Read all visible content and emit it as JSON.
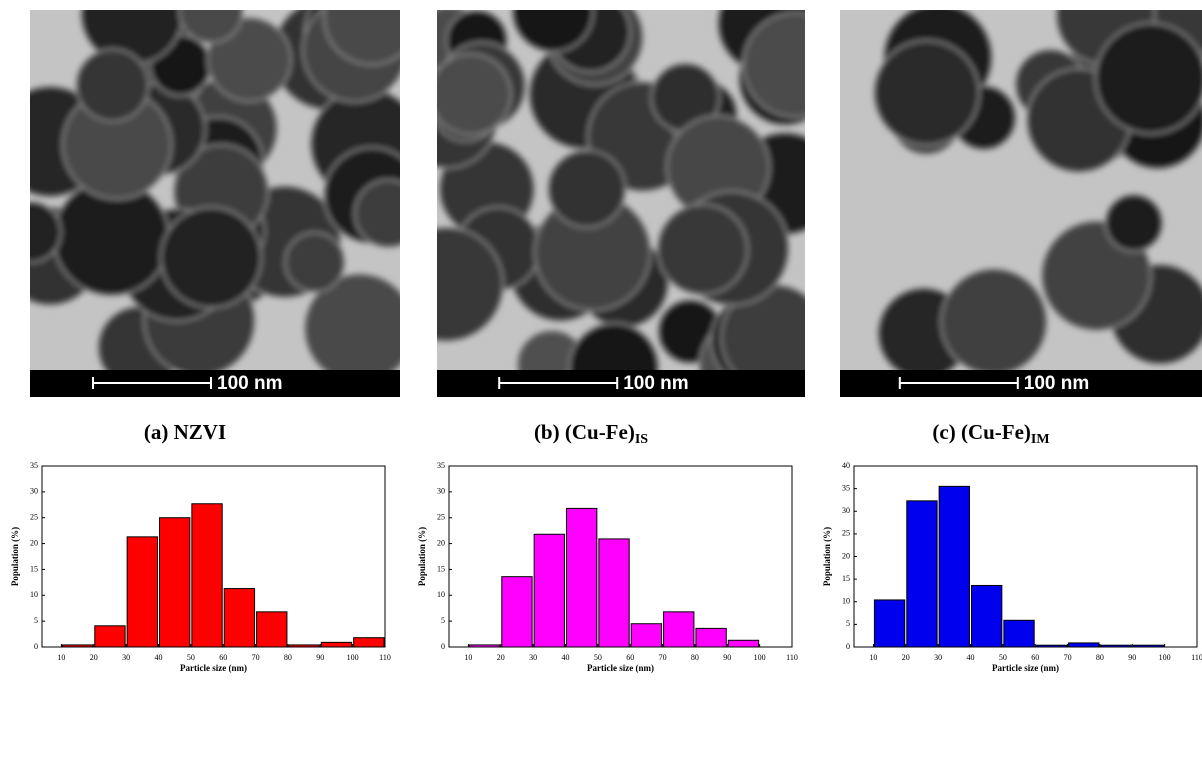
{
  "chart_data": [
    {
      "type": "histogram",
      "caption": "(a) NZVI",
      "scale_bar": "100 nm",
      "xlabel": "Particle size (nm)",
      "ylabel": "Population (%)",
      "color": "#ff0000",
      "bins": [
        10,
        20,
        30,
        40,
        50,
        60,
        70,
        80,
        90,
        100,
        110
      ],
      "values": [
        0.4,
        4.1,
        21.3,
        25,
        27.7,
        11.3,
        6.8,
        0.4,
        0.9,
        1.8
      ],
      "xlim": [
        4,
        110
      ],
      "xticks": [
        10,
        20,
        30,
        40,
        50,
        60,
        70,
        80,
        90,
        100,
        110
      ],
      "ylim": [
        0,
        35
      ],
      "yticks": [
        0,
        5,
        10,
        15,
        20,
        25,
        30,
        35
      ]
    },
    {
      "type": "histogram",
      "caption": "(b) (Cu-Fe)",
      "caption_subscript": "IS",
      "scale_bar": "100 nm",
      "xlabel": "Particle size (nm)",
      "ylabel": "Population (%)",
      "color": "#ff00ff",
      "bins": [
        10,
        20,
        30,
        40,
        50,
        60,
        70,
        80,
        90,
        100
      ],
      "values": [
        0.4,
        13.6,
        21.8,
        26.8,
        20.9,
        4.5,
        6.8,
        3.6,
        1.3
      ],
      "xlim": [
        4,
        110
      ],
      "xticks": [
        10,
        20,
        30,
        40,
        50,
        60,
        70,
        80,
        90,
        100,
        110
      ],
      "ylim": [
        0,
        35
      ],
      "yticks": [
        0,
        5,
        10,
        15,
        20,
        25,
        30,
        35
      ]
    },
    {
      "type": "histogram",
      "caption": "(c) (Cu-Fe)",
      "caption_subscript": "IM",
      "scale_bar": "100 nm",
      "xlabel": "Particle size (nm)",
      "ylabel": "Population (%)",
      "color": "#0000ee",
      "bins": [
        10,
        20,
        30,
        40,
        50,
        60,
        70,
        80,
        90,
        100
      ],
      "values": [
        10.4,
        32.3,
        35.5,
        13.6,
        5.9,
        0.4,
        0.9,
        0.4,
        0.4
      ],
      "xlim": [
        4,
        110
      ],
      "xticks": [
        10,
        20,
        30,
        40,
        50,
        60,
        70,
        80,
        90,
        100,
        110
      ],
      "ylim": [
        0,
        40
      ],
      "yticks": [
        0,
        5,
        10,
        15,
        20,
        25,
        30,
        35,
        40
      ]
    }
  ]
}
